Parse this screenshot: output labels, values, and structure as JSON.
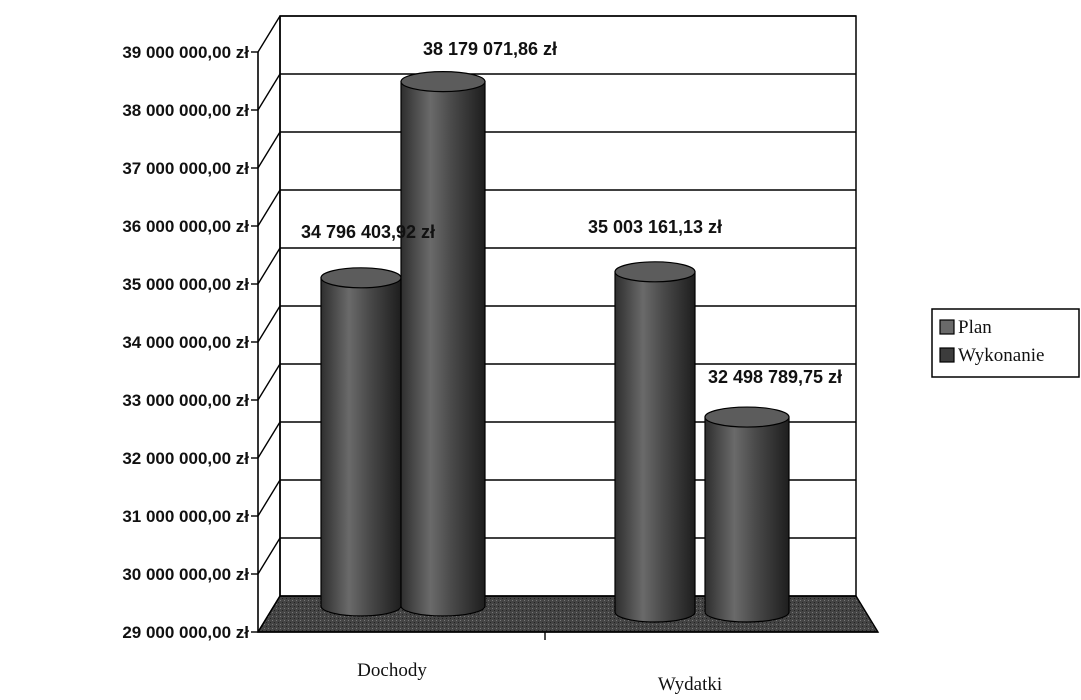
{
  "chart_data": {
    "type": "bar",
    "style": "3d-cylinder",
    "title": "",
    "xlabel": "",
    "ylabel": "",
    "ylim": [
      29000000,
      39000000
    ],
    "y_tick_step": 1000000,
    "y_tick_labels": [
      "29 000 000,00 zł",
      "30 000 000,00 zł",
      "31 000 000,00 zł",
      "32 000 000,00 zł",
      "33 000 000,00 zł",
      "34 000 000,00 zł",
      "35 000 000,00 zł",
      "36 000 000,00 zł",
      "37 000 000,00 zł",
      "38 000 000,00 zł",
      "39 000 000,00 zł"
    ],
    "categories": [
      "Dochody",
      "Wydatki"
    ],
    "series": [
      {
        "name": "Plan",
        "values": [
          34796403.92,
          35003161.13
        ],
        "labels": [
          "34 796 403,92 zł",
          "35 003 161,13 zł"
        ]
      },
      {
        "name": "Wykonanie",
        "values": [
          38179071.86,
          32498789.75
        ],
        "labels": [
          "38 179 071,86 zł",
          "32 498 789,75 zł"
        ]
      }
    ],
    "grid": true,
    "legend_position": "right",
    "colors": {
      "bar_dark": "#333333",
      "bar_mid": "#6e6e6e",
      "bar_light": "#9a9a9a",
      "floor": "#2a2a2a",
      "grid": "#000000"
    }
  }
}
